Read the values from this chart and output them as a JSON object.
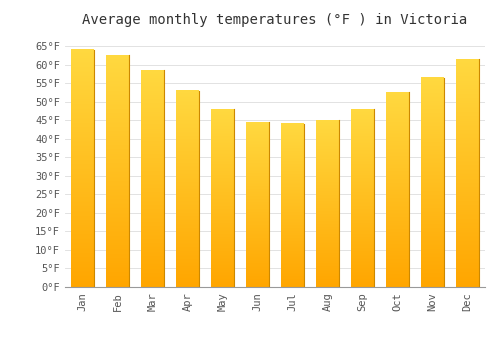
{
  "title": "Average monthly temperatures (°F ) in Victoria",
  "months": [
    "Jan",
    "Feb",
    "Mar",
    "Apr",
    "May",
    "Jun",
    "Jul",
    "Aug",
    "Sep",
    "Oct",
    "Nov",
    "Dec"
  ],
  "values": [
    64.0,
    62.5,
    58.5,
    53.0,
    48.0,
    44.5,
    44.0,
    45.0,
    48.0,
    52.5,
    56.5,
    61.5
  ],
  "bar_color_bottom": "#FFAA00",
  "bar_color_top": "#FFD040",
  "bar_edge_color": "#CC8800",
  "background_color": "#FFFFFF",
  "grid_color": "#DDDDDD",
  "text_color": "#555555",
  "ylim": [
    0,
    68
  ],
  "ytick_step": 5,
  "title_fontsize": 10,
  "tick_fontsize": 7.5,
  "figsize": [
    5.0,
    3.5
  ],
  "dpi": 100
}
